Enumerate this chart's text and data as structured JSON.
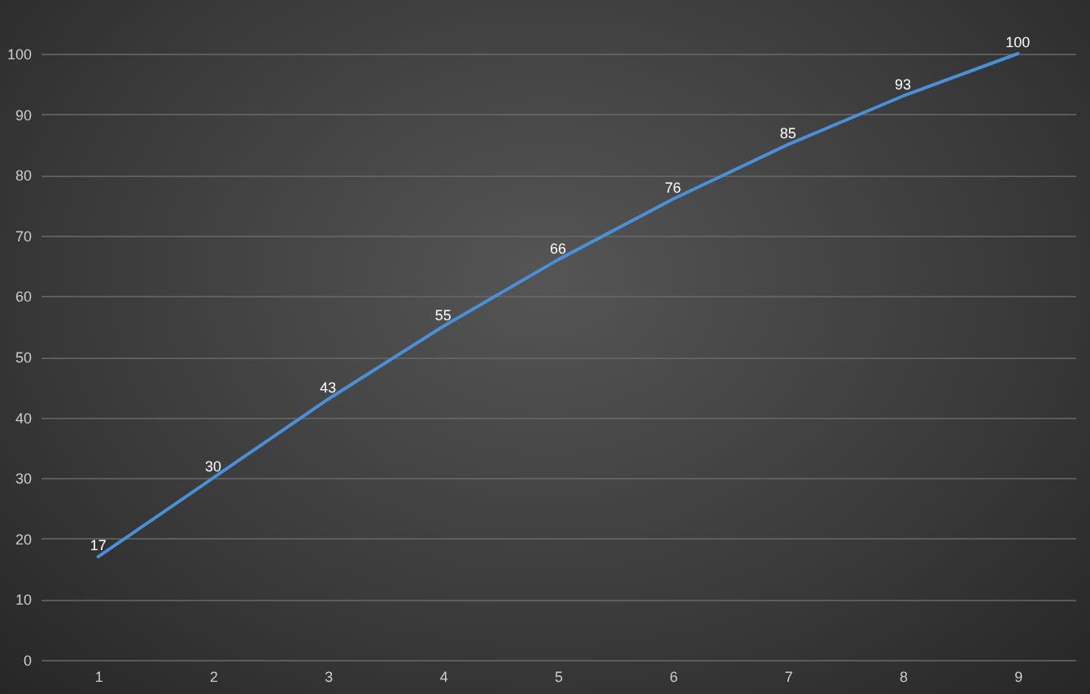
{
  "chart_data": {
    "type": "line",
    "categories": [
      "1",
      "2",
      "3",
      "4",
      "5",
      "6",
      "7",
      "8",
      "9"
    ],
    "series": [
      {
        "color": "#4a90d9",
        "values": [
          17,
          30,
          43,
          55,
          66,
          76,
          85,
          93,
          100
        ]
      }
    ],
    "ylim": [
      0,
      100
    ],
    "yticks": [
      0,
      10,
      20,
      30,
      40,
      50,
      60,
      70,
      80,
      90,
      100
    ],
    "grid": "y",
    "data_labels": true,
    "marker": "none",
    "line_style": "solid"
  }
}
